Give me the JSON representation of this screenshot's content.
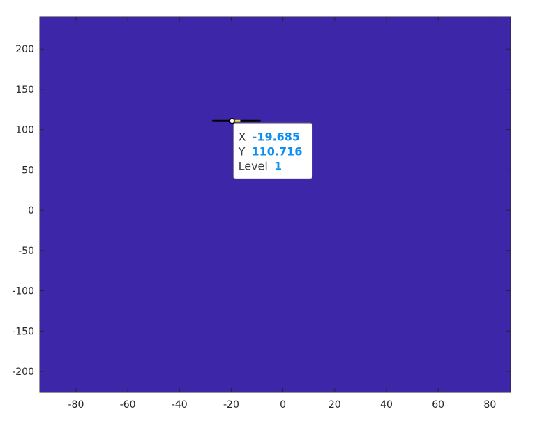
{
  "chart_data": {
    "type": "heatmap",
    "title": "",
    "xlabel": "",
    "ylabel": "",
    "xlim": [
      -94,
      88
    ],
    "ylim": [
      -226,
      240
    ],
    "xticks": [
      -80,
      -60,
      -40,
      -20,
      0,
      20,
      40,
      60,
      80
    ],
    "yticks": [
      -200,
      -150,
      -100,
      -50,
      0,
      50,
      100,
      150,
      200
    ],
    "xtick_labels": [
      "-80",
      "-60",
      "-40",
      "-20",
      "0",
      "20",
      "40",
      "60",
      "80"
    ],
    "ytick_labels": [
      "-200",
      "-150",
      "-100",
      "-50",
      "0",
      "50",
      "100",
      "150",
      "200"
    ],
    "grid": false,
    "background_color": "#3d26a8",
    "contour_segment": {
      "x": [
        -27,
        -9
      ],
      "y": [
        110.7,
        110.7
      ],
      "level": 1,
      "color": "#000000"
    },
    "highlight_segment": {
      "x": [
        -19.685,
        -16.5
      ],
      "y": [
        110.716,
        110.716
      ],
      "color": "#f0e442"
    },
    "datatip": {
      "x": -19.685,
      "y": 110.716,
      "x_label": "X",
      "x_value": "-19.685",
      "y_label": "Y",
      "y_value": "110.716",
      "level_label": "Level",
      "level_value": "1",
      "label_color": "#3c3c3c",
      "value_color": "#0d8ef2"
    }
  }
}
